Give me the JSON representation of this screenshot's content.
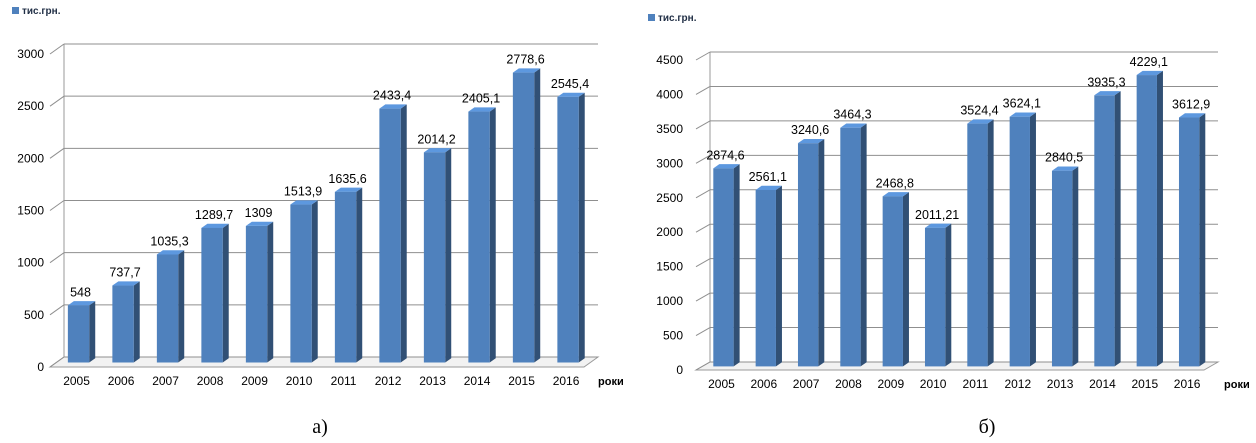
{
  "chart_data": [
    {
      "type": "bar",
      "legend": [
        "тис.грн."
      ],
      "categories": [
        "2005",
        "2006",
        "2007",
        "2008",
        "2009",
        "2010",
        "2011",
        "2012",
        "2013",
        "2014",
        "2015",
        "2016"
      ],
      "values": [
        548,
        737.7,
        1035.3,
        1289.7,
        1309,
        1513.9,
        1635.6,
        2433.4,
        2014.2,
        2405.1,
        2778.6,
        2545.4
      ],
      "data_labels": [
        "548",
        "737,7",
        "1035,3",
        "1289,7",
        "1309",
        "1513,9",
        "1635,6",
        "2433,4",
        "2014,2",
        "2405,1",
        "2778,6",
        "2545,4"
      ],
      "xlabel": "роки",
      "ylabel": "",
      "ylim": [
        0,
        3000
      ],
      "yticks": [
        "0",
        "500",
        "1000",
        "1500",
        "2000",
        "2500",
        "3000"
      ],
      "caption": "а)",
      "grid": true,
      "legend_position": "top-left",
      "bar_color": "#4f81bd"
    },
    {
      "type": "bar",
      "legend": [
        "тис.грн."
      ],
      "categories": [
        "2005",
        "2006",
        "2007",
        "2008",
        "2009",
        "2010",
        "2011",
        "2012",
        "2013",
        "2014",
        "2015",
        "2016"
      ],
      "values": [
        2874.6,
        2561.1,
        3240.6,
        3464.3,
        2468.8,
        2011.21,
        3524.4,
        3624.1,
        2840.5,
        3935.3,
        4229.1,
        3612.9
      ],
      "data_labels": [
        "2874,6",
        "2561,1",
        "3240,6",
        "3464,3",
        "2468,8",
        "2011,21",
        "3524,4",
        "3624,1",
        "2840,5",
        "3935,3",
        "4229,1",
        "3612,9"
      ],
      "xlabel": "роки",
      "ylabel": "",
      "ylim": [
        0,
        4500
      ],
      "yticks": [
        "0",
        "500",
        "1000",
        "1500",
        "2000",
        "2500",
        "3000",
        "3500",
        "4000",
        "4500"
      ],
      "caption": "б)",
      "grid": true,
      "legend_position": "top-left",
      "bar_color": "#4f81bd"
    }
  ]
}
